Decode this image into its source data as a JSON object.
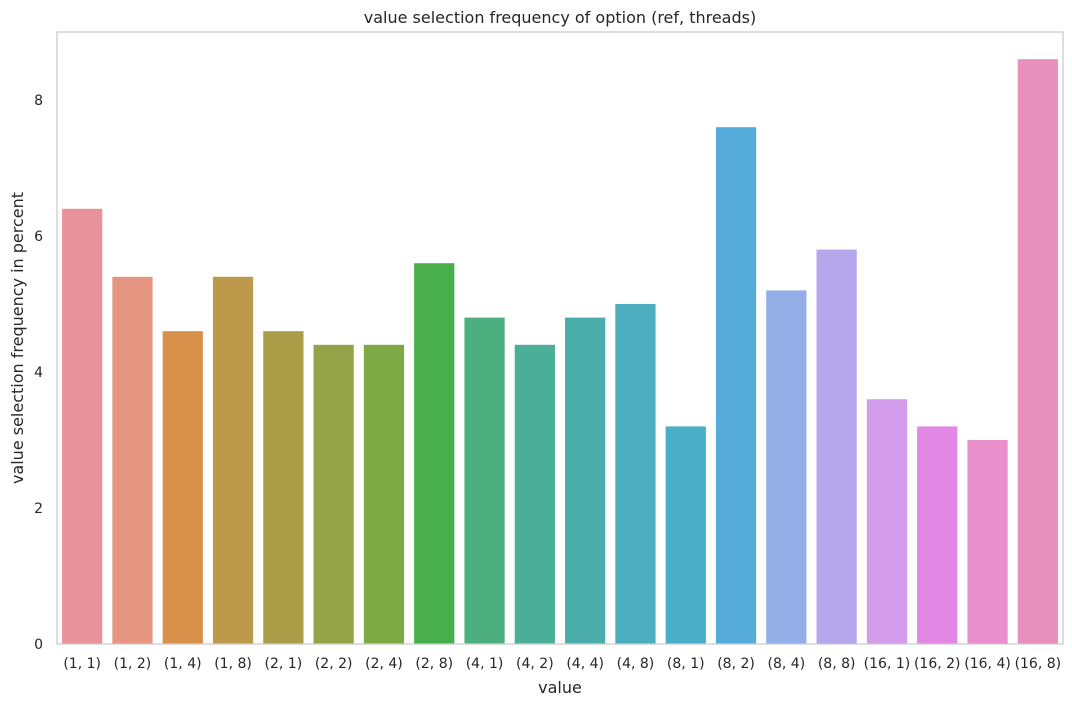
{
  "chart_data": {
    "type": "bar",
    "title": "value selection frequency of option (ref, threads)",
    "xlabel": "value",
    "ylabel": "value selection frequency in percent",
    "ylim": [
      0,
      9
    ],
    "yticks": [
      0,
      2,
      4,
      6,
      8
    ],
    "grid": false,
    "legend": "none",
    "categories": [
      "(1, 1)",
      "(1, 2)",
      "(1, 4)",
      "(1, 8)",
      "(2, 1)",
      "(2, 2)",
      "(2, 4)",
      "(2, 8)",
      "(4, 1)",
      "(4, 2)",
      "(4, 4)",
      "(4, 8)",
      "(8, 1)",
      "(8, 2)",
      "(8, 4)",
      "(8, 8)",
      "(16, 1)",
      "(16, 2)",
      "(16, 4)",
      "(16, 8)"
    ],
    "values": [
      6.4,
      5.4,
      4.6,
      5.4,
      4.6,
      4.4,
      4.4,
      5.6,
      4.8,
      4.4,
      4.8,
      5.0,
      3.2,
      7.6,
      5.2,
      5.8,
      3.6,
      3.2,
      3.0,
      8.6
    ],
    "colors": [
      "#e8939c",
      "#e69583",
      "#d7914a",
      "#bd9a4b",
      "#a99e47",
      "#95a348",
      "#7fa945",
      "#49ae4c",
      "#4daf7f",
      "#4bae96",
      "#4badaa",
      "#4badbd",
      "#4aaec9",
      "#55acda",
      "#94aee7",
      "#b6a7ec",
      "#d49deb",
      "#e387e6",
      "#e88fcb",
      "#e890bd"
    ]
  }
}
